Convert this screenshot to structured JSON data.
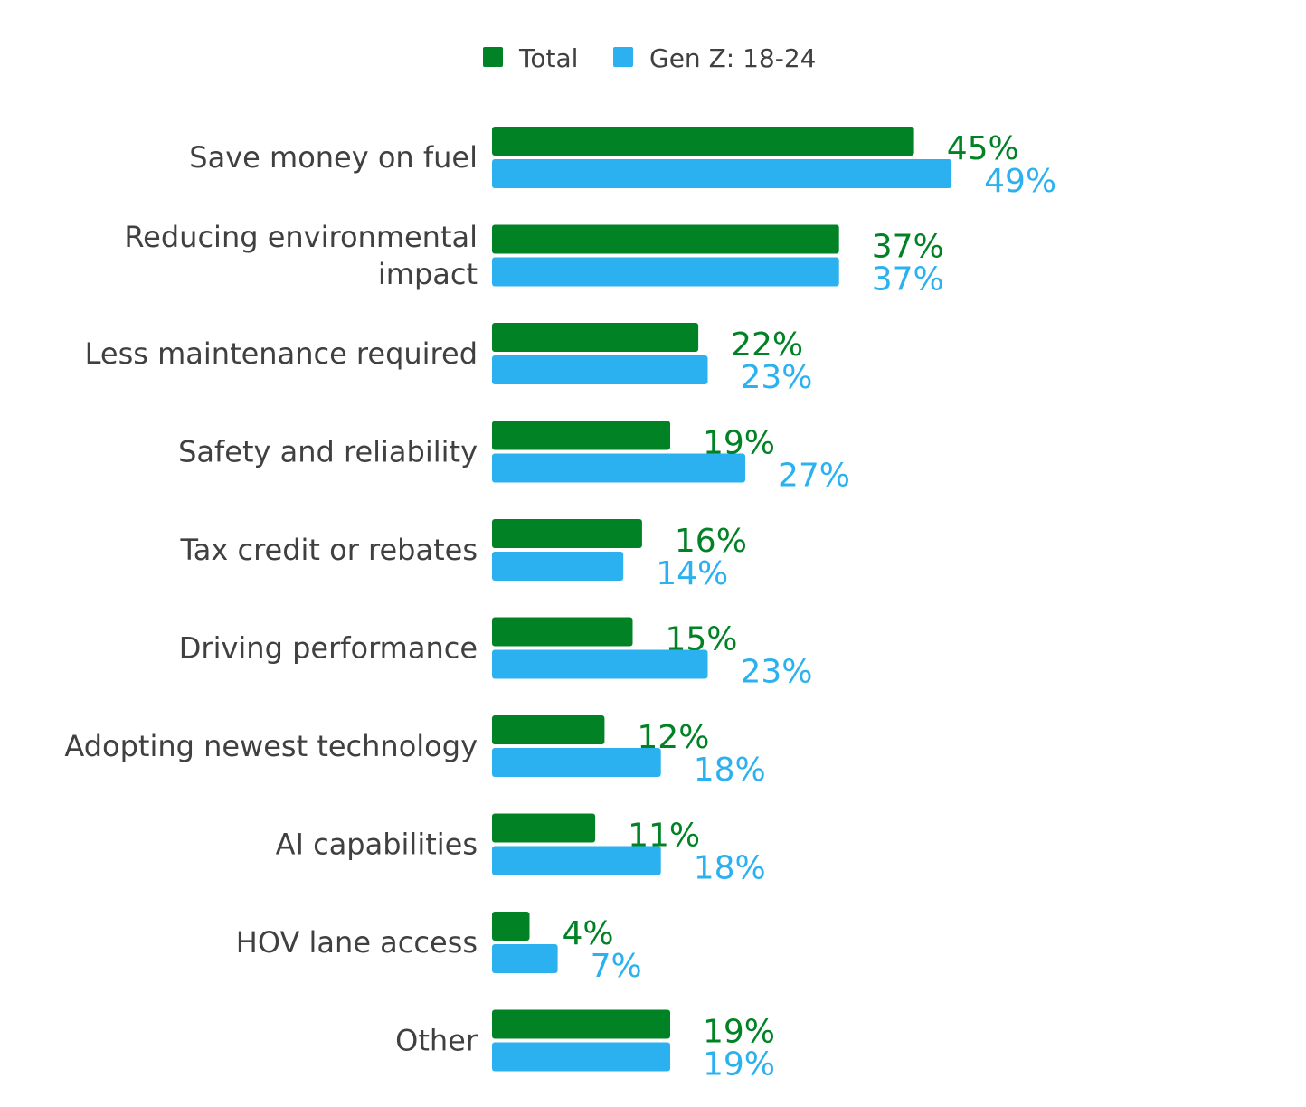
{
  "chart_data": {
    "type": "bar",
    "orientation": "horizontal",
    "title": "",
    "xlabel": "",
    "ylabel": "",
    "xlim": [
      0,
      100
    ],
    "grid": false,
    "legend_position": "top-center",
    "categories": [
      [
        "Save money on fuel"
      ],
      [
        "Reducing environmental",
        "impact"
      ],
      [
        "Less maintenance required"
      ],
      [
        "Safety and reliability"
      ],
      [
        "Tax credit or rebates"
      ],
      [
        "Driving performance"
      ],
      [
        "Adopting newest technology"
      ],
      [
        "AI capabilities"
      ],
      [
        "HOV lane access"
      ],
      [
        "Other"
      ]
    ],
    "series": [
      {
        "name": "Total",
        "color": "#008225",
        "values": [
          45,
          37,
          22,
          19,
          16,
          15,
          12,
          11,
          4,
          19
        ],
        "labels": [
          "45%",
          "37%",
          "22%",
          "19%",
          "16%",
          "15%",
          "12%",
          "11%",
          "4%",
          "19%"
        ]
      },
      {
        "name": "Gen Z: 18-24",
        "color": "#2CB1F0",
        "values": [
          49,
          37,
          23,
          27,
          14,
          23,
          18,
          18,
          7,
          19
        ],
        "labels": [
          "49%",
          "37%",
          "23%",
          "27%",
          "14%",
          "23%",
          "18%",
          "18%",
          "7%",
          "19%"
        ]
      }
    ]
  }
}
